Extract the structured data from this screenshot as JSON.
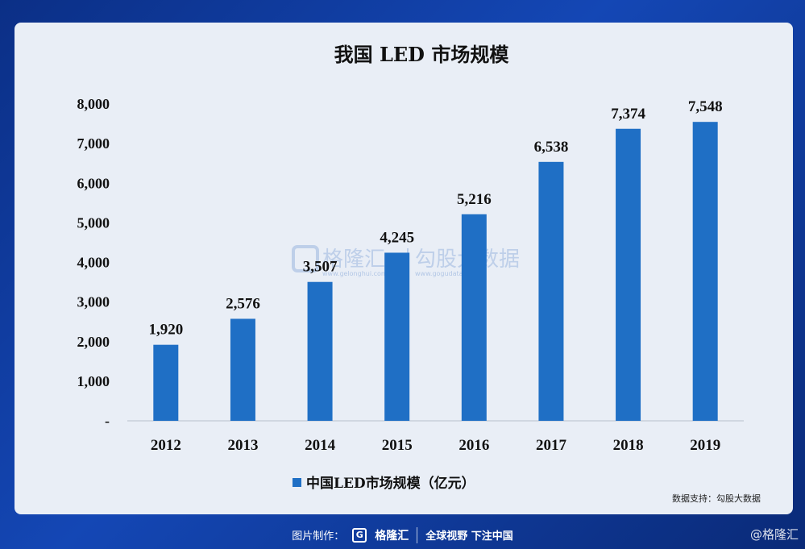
{
  "chart_data": {
    "type": "bar",
    "title": "我国 LED 市场规模",
    "categories": [
      "2012",
      "2013",
      "2014",
      "2015",
      "2016",
      "2017",
      "2018",
      "2019"
    ],
    "series": [
      {
        "name": "中国LED市场规模（亿元）",
        "values": [
          1920,
          2576,
          3507,
          4245,
          5216,
          6538,
          7374,
          7548
        ]
      }
    ],
    "value_labels": [
      "1,920",
      "2,576",
      "3,507",
      "4,245",
      "5,216",
      "6,538",
      "7,374",
      "7,548"
    ],
    "yticks": [
      "-",
      "1,000",
      "2,000",
      "3,000",
      "4,000",
      "5,000",
      "6,000",
      "7,000",
      "8,000"
    ],
    "ytick_values": [
      0,
      1000,
      2000,
      3000,
      4000,
      5000,
      6000,
      7000,
      8000
    ],
    "ylim": [
      0,
      8000
    ],
    "bar_color": "#1f6fc5",
    "legend_position": "bottom"
  },
  "source_note": "数据支持：勾股大数据",
  "watermark": {
    "brand": "格隆汇",
    "brand_url": "www.gelonghui.com",
    "data_brand": "勾股大数据",
    "data_url": "www.gogudata.com"
  },
  "footer": {
    "made_by": "图片制作：",
    "brand": "格隆汇",
    "slogan": "全球视野 下注中国"
  },
  "corner_mark": "@格隆汇"
}
